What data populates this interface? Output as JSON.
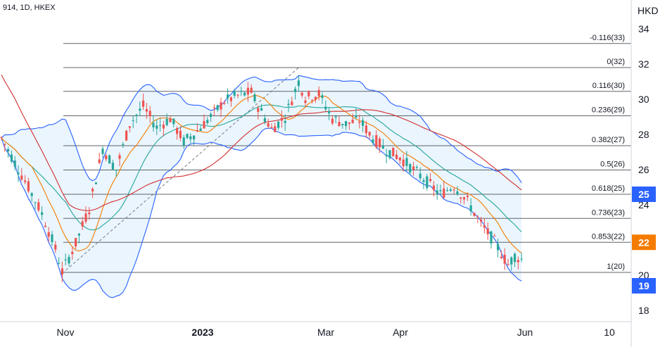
{
  "header": {
    "symbol_line": "914, 1D, HKEX"
  },
  "chart_data": {
    "type": "candlestick",
    "title": "914, 1D, HKEX",
    "y_unit": "HKD",
    "ylim": [
      17.6,
      35.0
    ],
    "y_ticks": [
      18,
      20,
      22,
      24,
      26,
      28,
      30,
      32,
      34
    ],
    "x_ticks": [
      "Nov",
      "2023",
      "Mar",
      "Apr",
      "Jun",
      "10"
    ],
    "grid": false,
    "price_badges": [
      {
        "value": "25",
        "color": "#2962ff"
      },
      {
        "value": "22",
        "color": "#f57c00"
      },
      {
        "value": "19",
        "color": "#2962ff"
      }
    ],
    "fib_levels": [
      {
        "label": "-0.116(33)",
        "value": 33.17
      },
      {
        "label": "0(32)",
        "value": 31.8
      },
      {
        "label": "0.116(30)",
        "value": 30.45
      },
      {
        "label": "0.236(29)",
        "value": 29.06
      },
      {
        "label": "0.382(27)",
        "value": 27.36
      },
      {
        "label": "0.5(26)",
        "value": 25.98
      },
      {
        "label": "0.618(25)",
        "value": 24.6
      },
      {
        "label": "0.736(23)",
        "value": 23.23
      },
      {
        "label": "0.853(22)",
        "value": 21.87
      },
      {
        "label": "1(20)",
        "value": 20.16
      }
    ],
    "trend_line": {
      "from": {
        "bar": 18,
        "value": 20.1
      },
      "to": {
        "bar": 88,
        "value": 31.8
      }
    },
    "series": [
      {
        "name": "Bollinger Bands",
        "color": "#2962ff"
      },
      {
        "name": "Moving average (orange)",
        "color": "#f57c00"
      },
      {
        "name": "Moving average (teal)",
        "color": "#26a69a"
      },
      {
        "name": "Moving average (red)",
        "color": "#d32f2f"
      }
    ],
    "colors": {
      "up": "#26a69a",
      "down": "#ef5350",
      "band_fill": "#e3f2fd",
      "fib_line": "#5f6368"
    },
    "path_points": [
      [
        0,
        27.8
      ],
      [
        4,
        26.4
      ],
      [
        8,
        25.0
      ],
      [
        12,
        23.5
      ],
      [
        16,
        21.5
      ],
      [
        18,
        20.2
      ],
      [
        22,
        21.8
      ],
      [
        26,
        23.8
      ],
      [
        30,
        27.2
      ],
      [
        34,
        26.0
      ],
      [
        38,
        28.6
      ],
      [
        42,
        29.6
      ],
      [
        46,
        28.4
      ],
      [
        50,
        28.9
      ],
      [
        54,
        27.6
      ],
      [
        58,
        28.2
      ],
      [
        62,
        29.0
      ],
      [
        66,
        29.9
      ],
      [
        70,
        30.2
      ],
      [
        74,
        30.4
      ],
      [
        76,
        29.6
      ],
      [
        80,
        28.3
      ],
      [
        84,
        29.0
      ],
      [
        88,
        31.0
      ],
      [
        90,
        30.1
      ],
      [
        94,
        30.3
      ],
      [
        98,
        28.9
      ],
      [
        102,
        28.6
      ],
      [
        106,
        28.8
      ],
      [
        110,
        27.8
      ],
      [
        114,
        27.1
      ],
      [
        118,
        26.7
      ],
      [
        122,
        26.0
      ],
      [
        126,
        25.3
      ],
      [
        130,
        24.6
      ],
      [
        134,
        25.1
      ],
      [
        138,
        24.2
      ],
      [
        142,
        22.9
      ],
      [
        146,
        21.9
      ],
      [
        150,
        20.6
      ],
      [
        152,
        21.1
      ],
      [
        154,
        20.9
      ]
    ]
  }
}
